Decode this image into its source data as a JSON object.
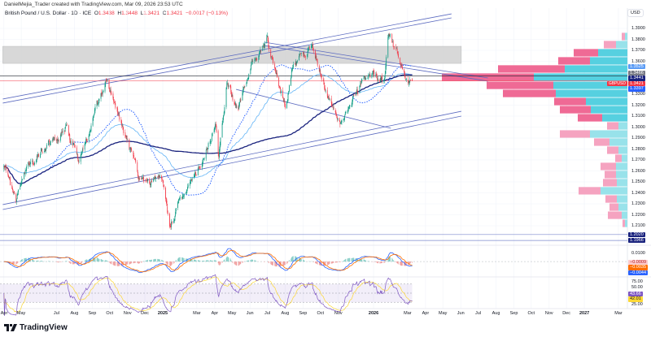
{
  "header": {
    "credit": "DanielMejia_Trader created with TradingView.com, Mar 09, 2026 23:53 UTC",
    "symbol": "British Pound / U.S. Dollar · 1D · ICE",
    "o_label": "O",
    "o": "1.3438",
    "h_label": "H",
    "h": "1.3448",
    "l_label": "L",
    "l": "1.3421",
    "c_label": "C",
    "c": "1.3421",
    "change": "−0.0017 (−0.13%)",
    "currency_button": "USD"
  },
  "branding": {
    "logo_text": "TradingView",
    "logo_icon": "tradingview-logo-icon"
  },
  "colors": {
    "up": "#089981",
    "down": "#f23645",
    "ma_long": "#1a237e",
    "ma_mid": "#2962ff",
    "ma_short": "#64b5f6",
    "profile_up": "#56d0e0",
    "profile_down": "#ef6a95",
    "profile_up_light": "#98e2ea",
    "profile_down_light": "#f5a3c0",
    "macd": "#2962ff",
    "signal": "#ff6d00",
    "rsi": "#7e57c2",
    "rsi_ma": "#fdd835",
    "trendline": "#5c6bc0",
    "zone": "#d1d1d1"
  },
  "chart_data": {
    "type": "candlestick",
    "symbol": "GBPUSD",
    "timeframe": "1D",
    "price_ylim": [
      1.19,
      1.4
    ],
    "price_ticks": [
      "1.3900",
      "1.3800",
      "1.3700",
      "1.3600",
      "1.3300",
      "1.3200",
      "1.3100",
      "1.3000",
      "1.2900",
      "1.2800",
      "1.2700",
      "1.2600",
      "1.2500",
      "1.2400",
      "1.2300",
      "1.2200",
      "1.2100"
    ],
    "time_ticks": [
      {
        "date": "2024-04-01",
        "label": "Apr"
      },
      {
        "date": "2024-05-01",
        "label": "May"
      },
      {
        "date": "2024-07-01",
        "label": "Jul"
      },
      {
        "date": "2024-08-01",
        "label": "Aug"
      },
      {
        "date": "2024-09-01",
        "label": "Sep"
      },
      {
        "date": "2024-10-01",
        "label": "Oct"
      },
      {
        "date": "2024-11-01",
        "label": "Nov"
      },
      {
        "date": "2024-12-01",
        "label": "Dec"
      },
      {
        "date": "2025-01-01",
        "label": "2025",
        "year": true
      },
      {
        "date": "2025-03-01",
        "label": "Mar"
      },
      {
        "date": "2025-04-01",
        "label": "Apr"
      },
      {
        "date": "2025-05-01",
        "label": "May"
      },
      {
        "date": "2025-06-01",
        "label": "Jun"
      },
      {
        "date": "2025-07-01",
        "label": "Jul"
      },
      {
        "date": "2025-08-01",
        "label": "Aug"
      },
      {
        "date": "2025-09-01",
        "label": "Sep"
      },
      {
        "date": "2025-10-01",
        "label": "Oct"
      },
      {
        "date": "2025-11-01",
        "label": "Nov"
      },
      {
        "date": "2026-01-01",
        "label": "2026",
        "year": true
      },
      {
        "date": "2026-03-01",
        "label": "Mar"
      },
      {
        "date": "2026-04-01",
        "label": "Apr"
      },
      {
        "date": "2026-05-01",
        "label": "May"
      },
      {
        "date": "2026-06-01",
        "label": "Jun"
      },
      {
        "date": "2026-07-01",
        "label": "Jul"
      },
      {
        "date": "2026-08-01",
        "label": "Aug"
      },
      {
        "date": "2026-09-01",
        "label": "Sep"
      },
      {
        "date": "2026-10-01",
        "label": "Oct"
      },
      {
        "date": "2026-11-01",
        "label": "Nov"
      },
      {
        "date": "2026-12-01",
        "label": "Dec"
      },
      {
        "date": "2027-01-01",
        "label": "2027",
        "year": true
      },
      {
        "date": "2027-03-01",
        "label": "Mar"
      }
    ],
    "price_path": [
      [
        "2024-04-01",
        1.262
      ],
      [
        "2024-04-22",
        1.234
      ],
      [
        "2024-05-15",
        1.265
      ],
      [
        "2024-06-12",
        1.28
      ],
      [
        "2024-07-17",
        1.3
      ],
      [
        "2024-08-08",
        1.27
      ],
      [
        "2024-09-26",
        1.342
      ],
      [
        "2024-10-31",
        1.29
      ],
      [
        "2024-11-22",
        1.25
      ],
      [
        "2024-12-31",
        1.252
      ],
      [
        "2025-01-13",
        1.212
      ],
      [
        "2025-02-28",
        1.258
      ],
      [
        "2025-04-03",
        1.3
      ],
      [
        "2025-04-08",
        1.272
      ],
      [
        "2025-04-22",
        1.34
      ],
      [
        "2025-05-12",
        1.315
      ],
      [
        "2025-06-05",
        1.36
      ],
      [
        "2025-07-01",
        1.379
      ],
      [
        "2025-08-01",
        1.32
      ],
      [
        "2025-08-15",
        1.357
      ],
      [
        "2025-09-17",
        1.372
      ],
      [
        "2025-10-14",
        1.33
      ],
      [
        "2025-11-05",
        1.301
      ],
      [
        "2025-12-10",
        1.338
      ],
      [
        "2026-01-05",
        1.348
      ],
      [
        "2026-01-20",
        1.343
      ],
      [
        "2026-01-27",
        1.385
      ],
      [
        "2026-02-10",
        1.367
      ],
      [
        "2026-03-02",
        1.336
      ],
      [
        "2026-03-09",
        1.3421
      ]
    ],
    "last_bar": {
      "date": "2026-03-09",
      "open": 1.3438,
      "high": 1.3448,
      "low": 1.3421,
      "close": 1.3421
    },
    "annotations": {
      "zone": {
        "from": "2024-03-30",
        "to": "2026-06-02",
        "top": 1.3737,
        "bottom": 1.3581
      },
      "trendlines": [
        {
          "from": [
            "2024-03-30",
            1.3256
          ],
          "to": [
            "2026-05-16",
            1.4033
          ]
        },
        {
          "from": [
            "2024-03-30",
            1.3219
          ],
          "to": [
            "2026-05-16",
            1.3996
          ]
        },
        {
          "from": [
            "2024-03-30",
            1.2293
          ],
          "to": [
            "2026-06-02",
            1.3144
          ]
        },
        {
          "from": [
            "2024-03-30",
            1.2248
          ],
          "to": [
            "2026-06-02",
            1.31
          ]
        },
        {
          "from": [
            "2025-06-26",
            1.3774
          ],
          "to": [
            "2026-07-18",
            1.3448
          ]
        },
        {
          "from": [
            "2025-06-26",
            1.3744
          ],
          "to": [
            "2026-07-18",
            1.3419
          ]
        },
        {
          "from": [
            "2025-05-08",
            1.3344
          ],
          "to": [
            "2026-01-31",
            1.2989
          ]
        }
      ],
      "hlines": [
        {
          "price": 1.3466,
          "color": "#131722"
        },
        {
          "price": 1.3421,
          "color": "#f23645"
        },
        {
          "price": 1.202,
          "color": "#5c6bc0"
        },
        {
          "price": 1.1966,
          "color": "#5c6bc0"
        }
      ]
    },
    "volume_profile": {
      "row_height": 0.0074,
      "rows": [
        {
          "price": 1.3826,
          "up": 3,
          "down": 4,
          "value_area": false
        },
        {
          "price": 1.3752,
          "up": 14,
          "down": 15,
          "value_area": false
        },
        {
          "price": 1.3678,
          "up": 36,
          "down": 30,
          "value_area": true
        },
        {
          "price": 1.3604,
          "up": 46,
          "down": 39,
          "value_area": true
        },
        {
          "price": 1.353,
          "up": 77,
          "down": 82,
          "value_area": true
        },
        {
          "price": 1.3456,
          "up": 115,
          "down": 113,
          "value_area": true
        },
        {
          "price": 1.3381,
          "up": 91,
          "down": 82,
          "value_area": true
        },
        {
          "price": 1.3307,
          "up": 88,
          "down": 65,
          "value_area": true
        },
        {
          "price": 1.3233,
          "up": 51,
          "down": 39,
          "value_area": true
        },
        {
          "price": 1.3159,
          "up": 45,
          "down": 38,
          "value_area": true
        },
        {
          "price": 1.3085,
          "up": 31,
          "down": 30,
          "value_area": true
        },
        {
          "price": 1.3011,
          "up": 11,
          "down": 14,
          "value_area": false
        },
        {
          "price": 1.2937,
          "up": 46,
          "down": 37,
          "value_area": false
        },
        {
          "price": 1.2863,
          "up": 22,
          "down": 19,
          "value_area": false
        },
        {
          "price": 1.2789,
          "up": 11,
          "down": 14,
          "value_area": false
        },
        {
          "price": 1.2715,
          "up": 7,
          "down": 8,
          "value_area": false
        },
        {
          "price": 1.2641,
          "up": 14,
          "down": 19,
          "value_area": false
        },
        {
          "price": 1.2567,
          "up": 14,
          "down": 14,
          "value_area": false
        },
        {
          "price": 1.2493,
          "up": 13,
          "down": 17,
          "value_area": false
        },
        {
          "price": 1.2419,
          "up": 33,
          "down": 27,
          "value_area": false
        },
        {
          "price": 1.2344,
          "up": 13,
          "down": 14,
          "value_area": false
        },
        {
          "price": 1.227,
          "up": 11,
          "down": 11,
          "value_area": false
        },
        {
          "price": 1.2196,
          "up": 7,
          "down": 17,
          "value_area": false
        },
        {
          "price": 1.2122,
          "up": 3,
          "down": 3,
          "value_area": false
        }
      ]
    },
    "price_tags": [
      {
        "price": 1.3525,
        "text": "1.3525",
        "bg": "#5b9cf6",
        "fg": "#fff"
      },
      {
        "price": 1.3466,
        "text": "1.3466",
        "bg": "#787b86",
        "fg": "#fff"
      },
      {
        "price": 1.3441,
        "text": "1.3441",
        "bg": "#1a237e",
        "fg": "#fff"
      },
      {
        "price": 1.3421,
        "text": "1.3421",
        "bg": "#f23645",
        "fg": "#fff",
        "symbol": "GBPUSD"
      },
      {
        "price": 1.3397,
        "text": "1.3397",
        "bg": "#2962ff",
        "fg": "#fff"
      },
      {
        "price": 1.202,
        "text": "1.2020",
        "bg": "#1a237e",
        "fg": "#fff"
      },
      {
        "price": 1.1966,
        "text": "1.1966",
        "bg": "#1a237e",
        "fg": "#fff"
      }
    ],
    "macd": {
      "axis_label": "0.0100",
      "axis_value": 0.01,
      "tags": [
        {
          "value": -0.0009,
          "text": "−0.0009",
          "bg": "#fccbcd",
          "fg": "#b71c1c"
        },
        {
          "value": -0.0035,
          "text": "−0.0035",
          "bg": "#ff6d00",
          "fg": "#fff"
        },
        {
          "value": -0.0044,
          "text": "−0.0044",
          "bg": "#2962ff",
          "fg": "#fff"
        }
      ]
    },
    "rsi": {
      "axis_labels": [
        {
          "value": 75,
          "text": "75.00"
        },
        {
          "value": 50,
          "text": "50.00"
        },
        {
          "value": 25,
          "text": "25.00"
        }
      ],
      "band": [
        30,
        70
      ],
      "tags": [
        {
          "value": 43.66,
          "text": "43.66",
          "bg": "#7e57c2",
          "fg": "#fff"
        },
        {
          "value": 42.01,
          "text": "42.01",
          "bg": "#fdd835",
          "fg": "#131722"
        }
      ]
    }
  }
}
